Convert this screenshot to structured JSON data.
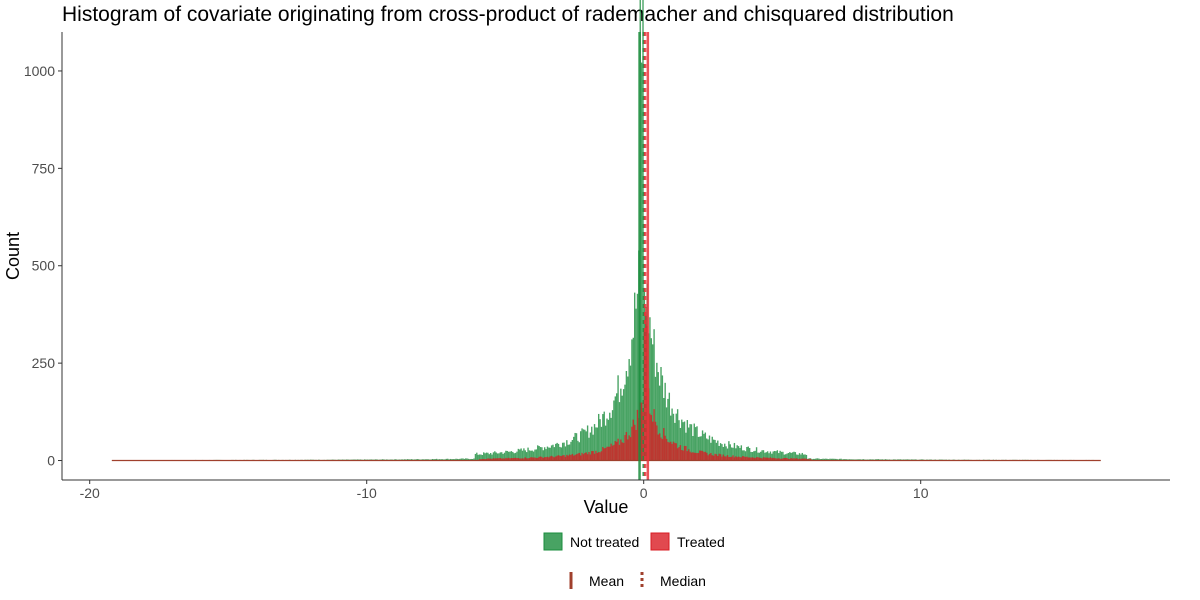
{
  "chart_data": {
    "type": "histogram",
    "title": "Histogram of covariate originating from cross-product of rademacher and chisquared distribution",
    "xlabel": "Value",
    "ylabel": "Count",
    "xlim": [
      -21,
      19
    ],
    "ylim": [
      -50,
      1100
    ],
    "x_ticks": [
      -20,
      -10,
      0,
      10
    ],
    "x_tick_labels": [
      "-20",
      "-10",
      "0",
      "10"
    ],
    "y_ticks": [
      0,
      250,
      500,
      750,
      1000
    ],
    "y_tick_labels": [
      "0",
      "250",
      "500",
      "750",
      "1000"
    ],
    "data_range": [
      -19.2,
      16.5
    ],
    "grid": false,
    "legend_position": "bottom",
    "series": [
      {
        "name": "Not treated",
        "color": "#1a8c3c",
        "alpha": 0.8,
        "peak_x": -0.1,
        "peak_count": 1100,
        "mean": -0.15,
        "median": 0.0
      },
      {
        "name": "Treated",
        "color": "#d91c23",
        "alpha": 0.8,
        "peak_x": 0.05,
        "peak_count": 380,
        "mean": 0.15,
        "median": 0.05
      }
    ],
    "lines": [
      {
        "series": "Not treated",
        "stat": "mean",
        "x": -0.15,
        "color": "#1a8c3c",
        "style": "solid"
      },
      {
        "series": "Not treated",
        "stat": "median",
        "x": 0.0,
        "color": "#1a8c3c",
        "style": "dashed"
      },
      {
        "series": "Treated",
        "stat": "mean",
        "x": 0.15,
        "color": "#e8353c",
        "style": "solid"
      },
      {
        "series": "Treated",
        "stat": "median",
        "x": 0.05,
        "color": "#e8353c",
        "style": "dashed"
      }
    ]
  },
  "legend": {
    "fill_items": [
      {
        "label": "Not treated",
        "color": "#1a8c3c"
      },
      {
        "label": "Treated",
        "color": "#d91c23"
      }
    ],
    "line_items": [
      {
        "label": "Mean",
        "style": "solid",
        "color": "#a0402d"
      },
      {
        "label": "Median",
        "style": "dashed",
        "color": "#a0402d"
      }
    ]
  }
}
